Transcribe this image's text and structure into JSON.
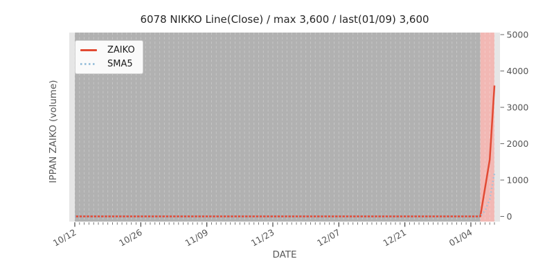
{
  "figure": {
    "background": "#ffffff",
    "plot_background": "#e6e6e6",
    "title_color": "#262626",
    "label_color": "#595959",
    "tick_label_color": "#555555",
    "tick_mark_color": "#666666"
  },
  "chart_data": {
    "type": "line",
    "title": "6078 NIKKO Line(Close) / max 3,600 / last(01/09) 3,600",
    "xlabel": "DATE",
    "ylabel": "IPPAN ZAIKO (volume)",
    "x_axis": {
      "kind": "date-daily",
      "start_date": "10/12",
      "end_date": "01/09",
      "days_total": 90,
      "tick_labels": [
        "10/12",
        "10/26",
        "11/09",
        "11/23",
        "12/07",
        "12/21",
        "01/04"
      ],
      "tick_day_indices": [
        0,
        14,
        28,
        42,
        56,
        70,
        84
      ],
      "minor_ticks_every_day": true,
      "tick_label_rotation_deg": -30
    },
    "y_axis": {
      "side": "right",
      "ticks": [
        0,
        1000,
        2000,
        3000,
        4000,
        5000
      ],
      "ylim": [
        -150,
        5100
      ],
      "gridlines": "vertical-daily-dashed-only"
    },
    "series": [
      {
        "name": "ZAIKO",
        "style": "solid",
        "color": "#e24a33",
        "points_day_value": [
          [
            0,
            0
          ],
          [
            86,
            0
          ],
          [
            87,
            780
          ],
          [
            88,
            1560
          ],
          [
            89,
            3600
          ]
        ],
        "note": "flat at 0 from 10/12 through 01/06, spikes to 3600 on 01/09"
      },
      {
        "name": "SMA5",
        "style": "dotted",
        "color": "#9cc2dc",
        "points_day_value": [
          [
            0,
            0
          ],
          [
            86,
            0
          ],
          [
            87,
            156
          ],
          [
            88,
            468
          ],
          [
            89,
            1188
          ]
        ],
        "note": "5-day moving average, rises to ~1190 on 01/09"
      }
    ],
    "spans": [
      {
        "name": "history-span",
        "from_day": 0,
        "to_day": 86,
        "color": "#b1b1b1"
      },
      {
        "name": "recent-highlight-span",
        "from_day": 86,
        "to_day": 89,
        "color": "#f2b8b4"
      }
    ],
    "max_value": 3600,
    "last_date": "01/09",
    "last_value": 3600
  },
  "legend": {
    "items": [
      {
        "label": "ZAIKO",
        "color": "#e24a33",
        "style": "solid"
      },
      {
        "label": "SMA5",
        "color": "#9cc2dc",
        "style": "dotted"
      }
    ]
  }
}
